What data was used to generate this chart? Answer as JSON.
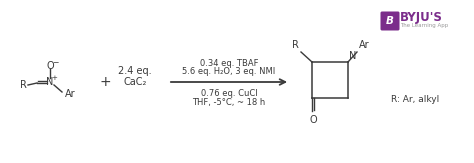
{
  "background_color": "#ffffff",
  "byju_box_color": "#7b2d8b",
  "byju_text": "BYJU'S",
  "byju_subtext": "The Learning App",
  "reagent_line1": "0.34 eq. TBAF",
  "reagent_line2": "5.6 eq. H₂O, 3 eq. NMI",
  "reagent_line3": "0.76 eq. CuCl",
  "reagent_line4": "THF, -5°C, ~ 18 h",
  "plus_text": "+",
  "cac2_line1": "2.4 eq.",
  "cac2_line2": "CaC₂",
  "r_ar_text": "R: Ar, alkyl",
  "text_color": "#3a3a3a",
  "arrow_color": "#3a3a3a",
  "figsize": [
    4.74,
    1.63
  ],
  "dpi": 100
}
